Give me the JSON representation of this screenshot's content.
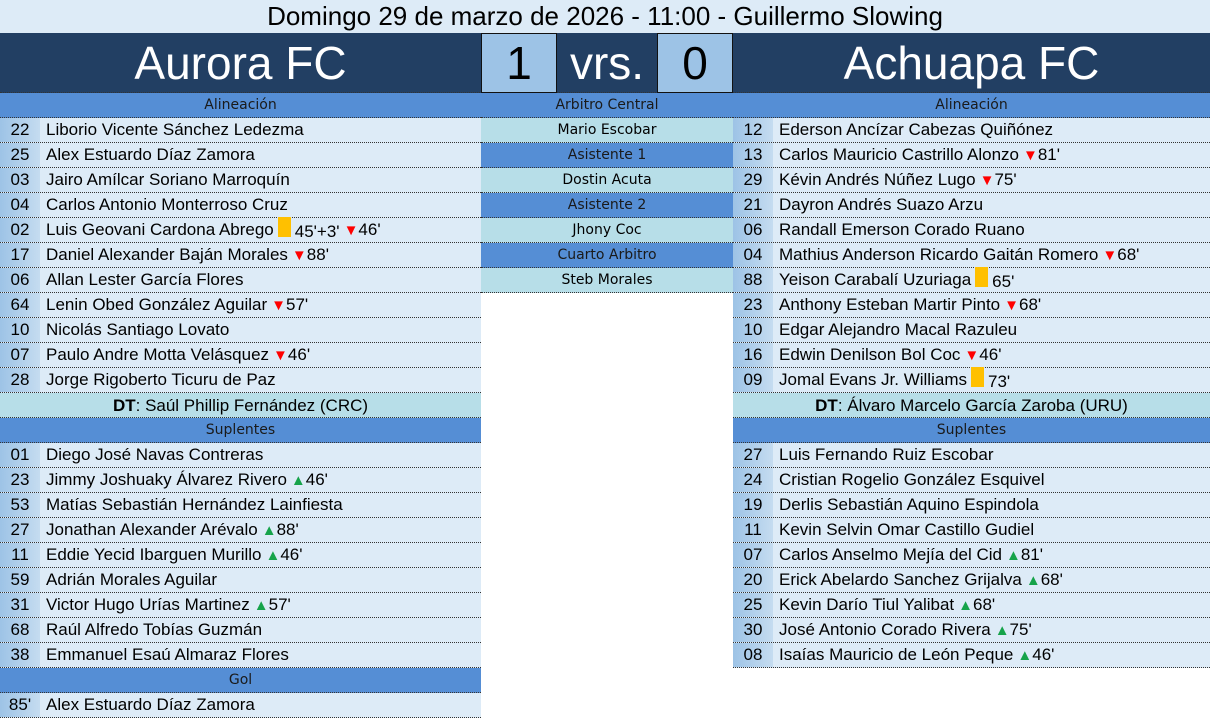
{
  "header": {
    "title": "Domingo 29 de marzo de 2026 - 11:00 - Guillermo Slowing"
  },
  "match": {
    "home_team": "Aurora FC",
    "home_score": "1",
    "vs_label": "vrs.",
    "away_score": "0",
    "away_team": "Achuapa FC"
  },
  "colors": {
    "banner": "#223f63",
    "section": "#558ed5",
    "row": "#ddebf7",
    "dt_row": "#b7dee8",
    "yellow_card": "#ffc000",
    "sub_off": "#ff0000",
    "sub_on": "#16a34a"
  },
  "home": {
    "lineup_label": "Alineación",
    "lineup": [
      {
        "num": "22",
        "name": "Liborio Vicente Sánchez Ledezma",
        "events": []
      },
      {
        "num": "25",
        "name": "Alex Estuardo Díaz Zamora",
        "events": []
      },
      {
        "num": "03",
        "name": "Jairo Amílcar Soriano Marroquín",
        "events": []
      },
      {
        "num": "04",
        "name": "Carlos Antonio Monterroso Cruz",
        "events": []
      },
      {
        "num": "02",
        "name": "Luis Geovani Cardona Abrego",
        "events": [
          {
            "type": "yellow",
            "minute": "45'+3'"
          },
          {
            "type": "sub_off",
            "minute": "46'"
          }
        ]
      },
      {
        "num": "17",
        "name": "Daniel Alexander Baján Morales",
        "events": [
          {
            "type": "sub_off",
            "minute": "88'"
          }
        ]
      },
      {
        "num": "06",
        "name": "Allan Lester García Flores",
        "events": []
      },
      {
        "num": "64",
        "name": "Lenin Obed González Aguilar",
        "events": [
          {
            "type": "sub_off",
            "minute": "57'"
          }
        ]
      },
      {
        "num": "10",
        "name": "Nicolás Santiago Lovato",
        "events": []
      },
      {
        "num": "07",
        "name": "Paulo Andre Motta Velásquez",
        "events": [
          {
            "type": "sub_off",
            "minute": "46'"
          }
        ]
      },
      {
        "num": "28",
        "name": "Jorge Rigoberto Ticuru de Paz",
        "events": []
      }
    ],
    "coach_label": "DT",
    "coach": "Saúl Phillip Fernández (CRC)",
    "subs_label": "Suplentes",
    "subs": [
      {
        "num": "01",
        "name": "Diego José Navas Contreras",
        "events": []
      },
      {
        "num": "23",
        "name": "Jimmy Joshuaky Álvarez Rivero",
        "events": [
          {
            "type": "sub_on",
            "minute": "46'"
          }
        ]
      },
      {
        "num": "53",
        "name": "Matías Sebastián Hernández Lainfiesta",
        "events": []
      },
      {
        "num": "27",
        "name": "Jonathan Alexander Arévalo",
        "events": [
          {
            "type": "sub_on",
            "minute": "88'"
          }
        ]
      },
      {
        "num": "11",
        "name": "Eddie Yecid Ibarguen Murillo",
        "events": [
          {
            "type": "sub_on",
            "minute": "46'"
          }
        ]
      },
      {
        "num": "59",
        "name": "Adrián Morales Aguilar",
        "events": []
      },
      {
        "num": "31",
        "name": "Victor Hugo Urías Martinez",
        "events": [
          {
            "type": "sub_on",
            "minute": "57'"
          }
        ]
      },
      {
        "num": "68",
        "name": "Raúl Alfredo Tobías Guzmán",
        "events": []
      },
      {
        "num": "38",
        "name": "Emmanuel Esaú Almaraz Flores",
        "events": []
      }
    ],
    "goals_label": "Gol",
    "goals": [
      {
        "num": "85'",
        "name": "Alex Estuardo Díaz Zamora",
        "events": []
      }
    ]
  },
  "officials": [
    {
      "label": "Arbitro Central",
      "name": "Mario Escobar"
    },
    {
      "label": "Asistente 1",
      "name": "Dostin Acuta"
    },
    {
      "label": "Asistente 2",
      "name": "Jhony Coc"
    },
    {
      "label": "Cuarto Arbitro",
      "name": "Steb Morales"
    }
  ],
  "away": {
    "lineup_label": "Alineación",
    "lineup": [
      {
        "num": "12",
        "name": "Ederson Ancízar Cabezas Quiñónez",
        "events": []
      },
      {
        "num": "13",
        "name": "Carlos Mauricio Castrillo Alonzo",
        "events": [
          {
            "type": "sub_off",
            "minute": "81'"
          }
        ]
      },
      {
        "num": "29",
        "name": "Kévin Andrés Núñez Lugo",
        "events": [
          {
            "type": "sub_off",
            "minute": "75'"
          }
        ]
      },
      {
        "num": "21",
        "name": "Dayron Andrés Suazo Arzu",
        "events": []
      },
      {
        "num": "06",
        "name": "Randall Emerson Corado Ruano",
        "events": []
      },
      {
        "num": "04",
        "name": "Mathius Anderson Ricardo Gaitán Romero",
        "events": [
          {
            "type": "sub_off",
            "minute": "68'"
          }
        ]
      },
      {
        "num": "88",
        "name": "Yeison Carabalí Uzuriaga",
        "events": [
          {
            "type": "yellow",
            "minute": "65'"
          }
        ]
      },
      {
        "num": "23",
        "name": "Anthony Esteban Martir Pinto",
        "events": [
          {
            "type": "sub_off",
            "minute": "68'"
          }
        ]
      },
      {
        "num": "10",
        "name": "Edgar Alejandro Macal Razuleu",
        "events": []
      },
      {
        "num": "16",
        "name": "Edwin Denilson Bol Coc",
        "events": [
          {
            "type": "sub_off",
            "minute": "46'"
          }
        ]
      },
      {
        "num": "09",
        "name": "Jomal Evans Jr. Williams",
        "events": [
          {
            "type": "yellow",
            "minute": "73'"
          }
        ]
      }
    ],
    "coach_label": "DT",
    "coach": "Álvaro Marcelo García Zaroba (URU)",
    "subs_label": "Suplentes",
    "subs": [
      {
        "num": "27",
        "name": "Luis Fernando Ruiz Escobar",
        "events": []
      },
      {
        "num": "24",
        "name": "Cristian Rogelio González Esquivel",
        "events": []
      },
      {
        "num": "19",
        "name": "Derlis Sebastián Aquino Espindola",
        "events": []
      },
      {
        "num": "11",
        "name": "Kevin Selvin Omar Castillo Gudiel",
        "events": []
      },
      {
        "num": "07",
        "name": "Carlos Anselmo Mejía del Cid",
        "events": [
          {
            "type": "sub_on",
            "minute": "81'"
          }
        ]
      },
      {
        "num": "20",
        "name": "Erick Abelardo Sanchez Grijalva",
        "events": [
          {
            "type": "sub_on",
            "minute": "68'"
          }
        ]
      },
      {
        "num": "25",
        "name": "Kevin Darío Tiul Yalibat",
        "events": [
          {
            "type": "sub_on",
            "minute": "68'"
          }
        ]
      },
      {
        "num": "30",
        "name": "José Antonio Corado Rivera",
        "events": [
          {
            "type": "sub_on",
            "minute": "75'"
          }
        ]
      },
      {
        "num": "08",
        "name": "Isaías Mauricio de León Peque",
        "events": [
          {
            "type": "sub_on",
            "minute": "46'"
          }
        ]
      }
    ]
  }
}
